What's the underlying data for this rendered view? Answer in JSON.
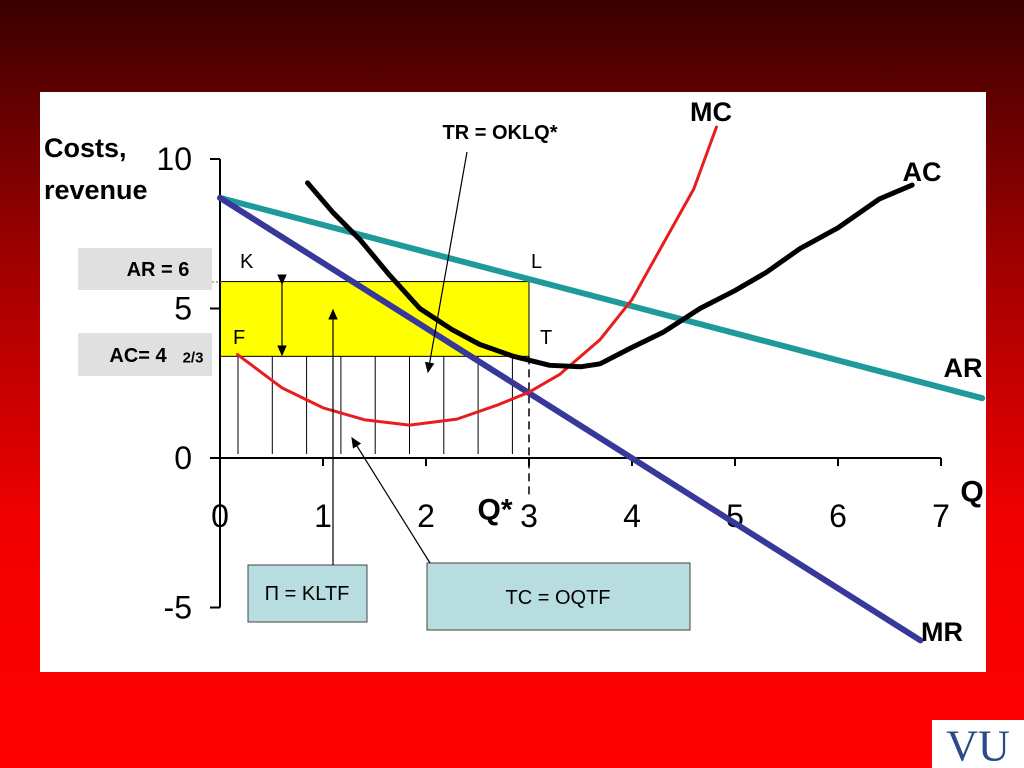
{
  "chart_data": {
    "type": "line",
    "y_label": [
      "Costs,",
      "revenue"
    ],
    "x_label": "Q",
    "xlim": [
      0,
      7
    ],
    "ylim": [
      -5,
      10
    ],
    "xticks": [
      0,
      1,
      2,
      3,
      4,
      5,
      6,
      7
    ],
    "yticks": [
      -5,
      0,
      5,
      10
    ],
    "series": [
      {
        "name": "AR",
        "color": "#1f9a9a",
        "x": [
          0,
          7.4
        ],
        "values": [
          8.7,
          2.0
        ]
      },
      {
        "name": "MR",
        "color": "#38389a",
        "x": [
          0,
          6.8
        ],
        "values": [
          8.7,
          -6.1
        ]
      },
      {
        "name": "MC",
        "color": "#e81e1e",
        "x": [
          0.17,
          0.6,
          1.0,
          1.4,
          1.84,
          2.3,
          2.7,
          3.0,
          3.3,
          3.69,
          4.0,
          4.3,
          4.6,
          4.82
        ],
        "values": [
          3.46,
          2.35,
          1.68,
          1.28,
          1.1,
          1.3,
          1.78,
          2.2,
          2.8,
          3.96,
          5.3,
          7.15,
          9.0,
          11.07
        ]
      },
      {
        "name": "AC",
        "color": "#000000",
        "x": [
          0.85,
          1.1,
          1.36,
          1.65,
          1.94,
          2.25,
          2.52,
          2.85,
          3.2,
          3.5,
          3.69,
          4.0,
          4.3,
          4.66,
          5.0,
          5.3,
          5.63,
          6.0,
          6.4,
          6.72
        ],
        "values": [
          9.2,
          8.2,
          7.3,
          6.1,
          5.0,
          4.3,
          3.8,
          3.4,
          3.1,
          3.05,
          3.15,
          3.7,
          4.2,
          5.0,
          5.6,
          6.2,
          7.0,
          7.7,
          8.66,
          9.13
        ]
      }
    ],
    "rect": {
      "x0": 0,
      "x1": 3,
      "y0": 3.4,
      "y1": 5.9,
      "color": "#ffff00"
    },
    "points": {
      "k": "K",
      "l": "L",
      "f": "F",
      "t": "T",
      "q_star": "Q*"
    },
    "annotations": {
      "tr": "TR = OKLQ*",
      "ar": "AR = 6",
      "ac": "AC= 4",
      "ac_fraction": "2/3",
      "profit": "Π = KLTF",
      "tc": "TC = OQTF"
    },
    "logo": "VU"
  }
}
